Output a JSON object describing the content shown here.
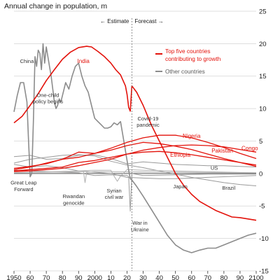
{
  "chart_data": {
    "type": "line",
    "title": "Annual change in population, m",
    "xlim": [
      1950,
      2100
    ],
    "ylim": [
      -15,
      25
    ],
    "x_ticks": [
      {
        "value": 1950,
        "label": "1950"
      },
      {
        "value": 1960,
        "label": "60"
      },
      {
        "value": 1970,
        "label": "70"
      },
      {
        "value": 1980,
        "label": "80"
      },
      {
        "value": 1990,
        "label": "90"
      },
      {
        "value": 2000,
        "label": "2000"
      },
      {
        "value": 2010,
        "label": "10"
      },
      {
        "value": 2020,
        "label": "20"
      },
      {
        "value": 2030,
        "label": "30"
      },
      {
        "value": 2040,
        "label": "40"
      },
      {
        "value": 2050,
        "label": "50"
      },
      {
        "value": 2060,
        "label": "60"
      },
      {
        "value": 2070,
        "label": "70"
      },
      {
        "value": 2080,
        "label": "80"
      },
      {
        "value": 2090,
        "label": "90"
      },
      {
        "value": 2100,
        "label": "2100"
      }
    ],
    "y_ticks": [
      {
        "value": 25,
        "label": "25"
      },
      {
        "value": 20,
        "label": "20"
      },
      {
        "value": 15,
        "label": "15"
      },
      {
        "value": 10,
        "label": "10"
      },
      {
        "value": 5,
        "label": "5"
      },
      {
        "value": 0,
        "label": "0"
      },
      {
        "value": -5,
        "label": "-5"
      },
      {
        "value": -10,
        "label": "-10"
      },
      {
        "value": -15,
        "label": "-15"
      }
    ],
    "divider_x": 2023,
    "phase_labels": {
      "estimate": "← Estimate",
      "forecast": "Forecast →"
    },
    "legend": [
      {
        "label": "Top five countries contributing to growth",
        "color": "#e3120b"
      },
      {
        "label": "Other countries",
        "color": "#8c8c8c"
      }
    ],
    "series": [
      {
        "name": "India",
        "group": "top",
        "color": "#e3120b",
        "points": [
          [
            1950,
            7.8
          ],
          [
            1955,
            8.8
          ],
          [
            1960,
            10.5
          ],
          [
            1965,
            12.3
          ],
          [
            1970,
            14.3
          ],
          [
            1975,
            16
          ],
          [
            1980,
            17.6
          ],
          [
            1985,
            18.7
          ],
          [
            1990,
            19.4
          ],
          [
            1995,
            19.6
          ],
          [
            1998,
            19.5
          ],
          [
            2002,
            18.8
          ],
          [
            2006,
            18
          ],
          [
            2010,
            17
          ],
          [
            2013,
            16
          ],
          [
            2016,
            15.2
          ],
          [
            2019,
            13.5
          ],
          [
            2020,
            12.2
          ],
          [
            2021,
            10.2
          ],
          [
            2022,
            9.6
          ],
          [
            2023,
            13.5
          ],
          [
            2026,
            12.5
          ],
          [
            2030,
            10.5
          ],
          [
            2035,
            7.5
          ],
          [
            2040,
            5
          ],
          [
            2045,
            2.5
          ],
          [
            2050,
            0
          ],
          [
            2055,
            -1.8
          ],
          [
            2060,
            -3.2
          ],
          [
            2065,
            -4.3
          ],
          [
            2070,
            -5
          ],
          [
            2075,
            -5.7
          ],
          [
            2080,
            -6.2
          ],
          [
            2085,
            -6.7
          ],
          [
            2090,
            -6.8
          ],
          [
            2095,
            -7
          ],
          [
            2100,
            -7.2
          ]
        ]
      },
      {
        "name": "China",
        "group": "other",
        "color": "#8c8c8c",
        "points": [
          [
            1950,
            9.5
          ],
          [
            1952,
            12
          ],
          [
            1954,
            14
          ],
          [
            1956,
            14
          ],
          [
            1958,
            11
          ],
          [
            1959,
            5
          ],
          [
            1960,
            -0.5
          ],
          [
            1961,
            0
          ],
          [
            1962,
            8
          ],
          [
            1963,
            18
          ],
          [
            1964,
            16.5
          ],
          [
            1965,
            19
          ],
          [
            1966,
            18.5
          ],
          [
            1967,
            16
          ],
          [
            1968,
            20
          ],
          [
            1969,
            17
          ],
          [
            1970,
            19.5
          ],
          [
            1971,
            18
          ],
          [
            1972,
            16.5
          ],
          [
            1973,
            15
          ],
          [
            1974,
            13
          ],
          [
            1975,
            11
          ],
          [
            1976,
            10
          ],
          [
            1977,
            10.5
          ],
          [
            1978,
            11.5
          ],
          [
            1979,
            11
          ],
          [
            1980,
            12
          ],
          [
            1982,
            14
          ],
          [
            1984,
            13
          ],
          [
            1986,
            15
          ],
          [
            1988,
            16.5
          ],
          [
            1990,
            17
          ],
          [
            1992,
            15
          ],
          [
            1994,
            13.5
          ],
          [
            1996,
            12.5
          ],
          [
            1998,
            10.5
          ],
          [
            2000,
            8.5
          ],
          [
            2002,
            8
          ],
          [
            2004,
            7.5
          ],
          [
            2006,
            7
          ],
          [
            2008,
            7
          ],
          [
            2010,
            7.2
          ],
          [
            2012,
            7.8
          ],
          [
            2014,
            7.5
          ],
          [
            2016,
            8
          ],
          [
            2018,
            5
          ],
          [
            2020,
            2
          ],
          [
            2021,
            0.5
          ],
          [
            2022,
            -0.8
          ],
          [
            2023,
            -1
          ],
          [
            2026,
            -2
          ],
          [
            2030,
            -3.5
          ],
          [
            2035,
            -5.5
          ],
          [
            2040,
            -7.5
          ],
          [
            2045,
            -9.5
          ],
          [
            2050,
            -11
          ],
          [
            2055,
            -11.8
          ],
          [
            2060,
            -12.2
          ],
          [
            2065,
            -11.8
          ],
          [
            2070,
            -11.5
          ],
          [
            2075,
            -11.5
          ],
          [
            2080,
            -11
          ],
          [
            2085,
            -10.5
          ],
          [
            2090,
            -10
          ],
          [
            2095,
            -9.5
          ],
          [
            2100,
            -9.2
          ]
        ]
      },
      {
        "name": "Nigeria",
        "group": "top",
        "color": "#e3120b",
        "points": [
          [
            1950,
            0.8
          ],
          [
            1960,
            1.1
          ],
          [
            1970,
            1.5
          ],
          [
            1980,
            2.2
          ],
          [
            1990,
            2.5
          ],
          [
            2000,
            3.1
          ],
          [
            2010,
            3.9
          ],
          [
            2020,
            4.8
          ],
          [
            2030,
            5.5
          ],
          [
            2040,
            5.9
          ],
          [
            2050,
            5.9
          ],
          [
            2060,
            5.5
          ],
          [
            2070,
            4.8
          ],
          [
            2080,
            4
          ],
          [
            2090,
            3.1
          ],
          [
            2100,
            2.3
          ]
        ]
      },
      {
        "name": "Pakistan",
        "group": "top",
        "color": "#e3120b",
        "points": [
          [
            1950,
            0.6
          ],
          [
            1960,
            1
          ],
          [
            1970,
            1.6
          ],
          [
            1980,
            2.2
          ],
          [
            1990,
            3.3
          ],
          [
            2000,
            3.1
          ],
          [
            2010,
            3.6
          ],
          [
            2020,
            4.3
          ],
          [
            2030,
            4.8
          ],
          [
            2040,
            4.6
          ],
          [
            2050,
            4.2
          ],
          [
            2060,
            3.7
          ],
          [
            2070,
            3
          ],
          [
            2080,
            2.3
          ],
          [
            2090,
            1.7
          ],
          [
            2100,
            1.1
          ]
        ]
      },
      {
        "name": "Ethiopia",
        "group": "top",
        "color": "#e3120b",
        "points": [
          [
            1950,
            0.4
          ],
          [
            1960,
            0.6
          ],
          [
            1970,
            0.8
          ],
          [
            1980,
            1
          ],
          [
            1990,
            1.7
          ],
          [
            2000,
            2
          ],
          [
            2010,
            2.5
          ],
          [
            2020,
            3
          ],
          [
            2030,
            3.3
          ],
          [
            2040,
            3.4
          ],
          [
            2050,
            3.2
          ],
          [
            2060,
            2.9
          ],
          [
            2070,
            2.5
          ],
          [
            2080,
            2.1
          ],
          [
            2090,
            1.7
          ],
          [
            2100,
            1.3
          ]
        ]
      },
      {
        "name": "Congo",
        "group": "top",
        "color": "#e3120b",
        "points": [
          [
            1950,
            0.3
          ],
          [
            1960,
            0.4
          ],
          [
            1970,
            0.6
          ],
          [
            1980,
            0.8
          ],
          [
            1990,
            1.2
          ],
          [
            2000,
            1.7
          ],
          [
            2010,
            2.2
          ],
          [
            2020,
            3
          ],
          [
            2030,
            3.6
          ],
          [
            2040,
            4
          ],
          [
            2050,
            4.3
          ],
          [
            2060,
            4.4
          ],
          [
            2070,
            4.3
          ],
          [
            2080,
            4.1
          ],
          [
            2090,
            3.7
          ],
          [
            2100,
            3.3
          ]
        ]
      },
      {
        "name": "US",
        "group": "other",
        "color": "#9a9a9a",
        "points": [
          [
            1950,
            2.6
          ],
          [
            1960,
            2.8
          ],
          [
            1970,
            2.2
          ],
          [
            1980,
            2.3
          ],
          [
            1990,
            2.8
          ],
          [
            2000,
            2.9
          ],
          [
            2010,
            2.3
          ],
          [
            2020,
            1.5
          ],
          [
            2030,
            1.8
          ],
          [
            2040,
            1.6
          ],
          [
            2050,
            1.4
          ],
          [
            2060,
            1.3
          ],
          [
            2070,
            1.2
          ],
          [
            2080,
            1.2
          ],
          [
            2090,
            1.1
          ],
          [
            2100,
            1
          ]
        ]
      },
      {
        "name": "Japan",
        "group": "other",
        "color": "#9a9a9a",
        "points": [
          [
            1950,
            1.4
          ],
          [
            1960,
            1
          ],
          [
            1970,
            1.2
          ],
          [
            1980,
            0.9
          ],
          [
            1990,
            0.4
          ],
          [
            2000,
            0.2
          ],
          [
            2010,
            0
          ],
          [
            2020,
            -0.6
          ],
          [
            2030,
            -0.7
          ],
          [
            2040,
            -0.8
          ],
          [
            2050,
            -0.8
          ],
          [
            2060,
            -0.7
          ],
          [
            2070,
            -0.6
          ],
          [
            2080,
            -0.5
          ],
          [
            2090,
            -0.4
          ],
          [
            2100,
            -0.3
          ]
        ]
      },
      {
        "name": "Brazil",
        "group": "other",
        "color": "#9a9a9a",
        "points": [
          [
            1950,
            1.6
          ],
          [
            1960,
            2.2
          ],
          [
            1970,
            2.5
          ],
          [
            1980,
            2.8
          ],
          [
            1990,
            2.9
          ],
          [
            2000,
            2.7
          ],
          [
            2010,
            1.9
          ],
          [
            2020,
            1.3
          ],
          [
            2030,
            0.9
          ],
          [
            2040,
            0.4
          ],
          [
            2050,
            -0.1
          ],
          [
            2060,
            -0.6
          ],
          [
            2070,
            -1
          ],
          [
            2080,
            -1.4
          ],
          [
            2090,
            -1.7
          ],
          [
            2100,
            -1.9
          ]
        ]
      },
      {
        "name": "Ukraine",
        "group": "other",
        "color": "#9a9a9a",
        "points": [
          [
            1950,
            0.5
          ],
          [
            1960,
            0.4
          ],
          [
            1970,
            0.3
          ],
          [
            1980,
            0.2
          ],
          [
            1990,
            0.1
          ],
          [
            2000,
            -0.3
          ],
          [
            2010,
            -0.2
          ],
          [
            2020,
            -0.3
          ],
          [
            2021,
            -0.5
          ],
          [
            2022,
            -5.8
          ],
          [
            2023,
            0
          ],
          [
            2030,
            -0.3
          ],
          [
            2050,
            -0.2
          ],
          [
            2070,
            -0.1
          ],
          [
            2100,
            -0.1
          ]
        ]
      },
      {
        "name": "Syria",
        "group": "other",
        "color": "#b0b0b0",
        "points": [
          [
            1950,
            0.1
          ],
          [
            1990,
            0.4
          ],
          [
            2000,
            0.5
          ],
          [
            2010,
            0.5
          ],
          [
            2012,
            -0.4
          ],
          [
            2014,
            -1.2
          ],
          [
            2016,
            -0.4
          ],
          [
            2020,
            0.6
          ],
          [
            2030,
            0.5
          ],
          [
            2100,
            0.1
          ]
        ]
      },
      {
        "name": "Rwanda",
        "group": "other",
        "color": "#b0b0b0",
        "points": [
          [
            1950,
            0.1
          ],
          [
            1990,
            0.3
          ],
          [
            1993,
            0.3
          ],
          [
            1994,
            -1.4
          ],
          [
            1995,
            0.2
          ],
          [
            2000,
            0.3
          ],
          [
            2100,
            0.1
          ]
        ]
      }
    ],
    "annotations": [
      {
        "text": "China",
        "x": 1958,
        "y": 17
      },
      {
        "text": "India",
        "x": 1993,
        "y": 17
      },
      {
        "text": "One-child",
        "x": 1971,
        "y": 11.8
      },
      {
        "text": "policy begins",
        "x": 1971,
        "y": 10.8
      },
      {
        "text": "Covid-19",
        "x": 2033,
        "y": 8.2
      },
      {
        "text": "pandemic",
        "x": 2033,
        "y": 7.2
      },
      {
        "text": "Nigeria",
        "x": 2060,
        "y": 5.5
      },
      {
        "text": "Pakistan",
        "x": 2079,
        "y": 3.2
      },
      {
        "text": "Congo",
        "x": 2096,
        "y": 3.6
      },
      {
        "text": "Ethiopia",
        "x": 2053,
        "y": 2.6
      },
      {
        "text": "US",
        "x": 2074,
        "y": 0.6
      },
      {
        "text": "Japan",
        "x": 2053,
        "y": -2.3
      },
      {
        "text": "Brazil",
        "x": 2083,
        "y": -2.5
      },
      {
        "text": "Great Leap",
        "x": 1956,
        "y": -1.7
      },
      {
        "text": "Forward",
        "x": 1956,
        "y": -2.7
      },
      {
        "text": "Rwandan",
        "x": 1987,
        "y": -3.8
      },
      {
        "text": "genocide",
        "x": 1987,
        "y": -4.8
      },
      {
        "text": "Syrian",
        "x": 2012,
        "y": -2.9
      },
      {
        "text": "civil war",
        "x": 2012,
        "y": -3.9
      },
      {
        "text": "War in",
        "x": 2028,
        "y": -7.9
      },
      {
        "text": "Ukraine",
        "x": 2028,
        "y": -8.9
      }
    ]
  }
}
